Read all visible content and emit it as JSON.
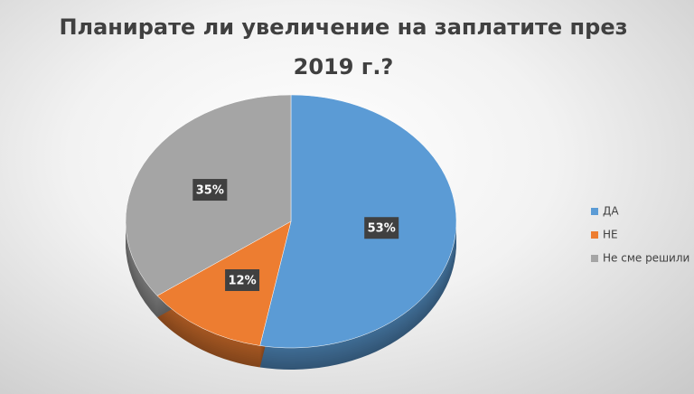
{
  "chart_data": {
    "type": "pie",
    "title": "Планирате ли увеличение на заплатите през 2019 г.?",
    "categories": [
      "ДА",
      "НЕ",
      "Не сме решили"
    ],
    "values": [
      53,
      12,
      35
    ],
    "value_labels": [
      "53%",
      "12%",
      "35%"
    ],
    "colors": [
      "#5b9bd5",
      "#ed7d31",
      "#a5a5a5"
    ],
    "legend": "right"
  }
}
